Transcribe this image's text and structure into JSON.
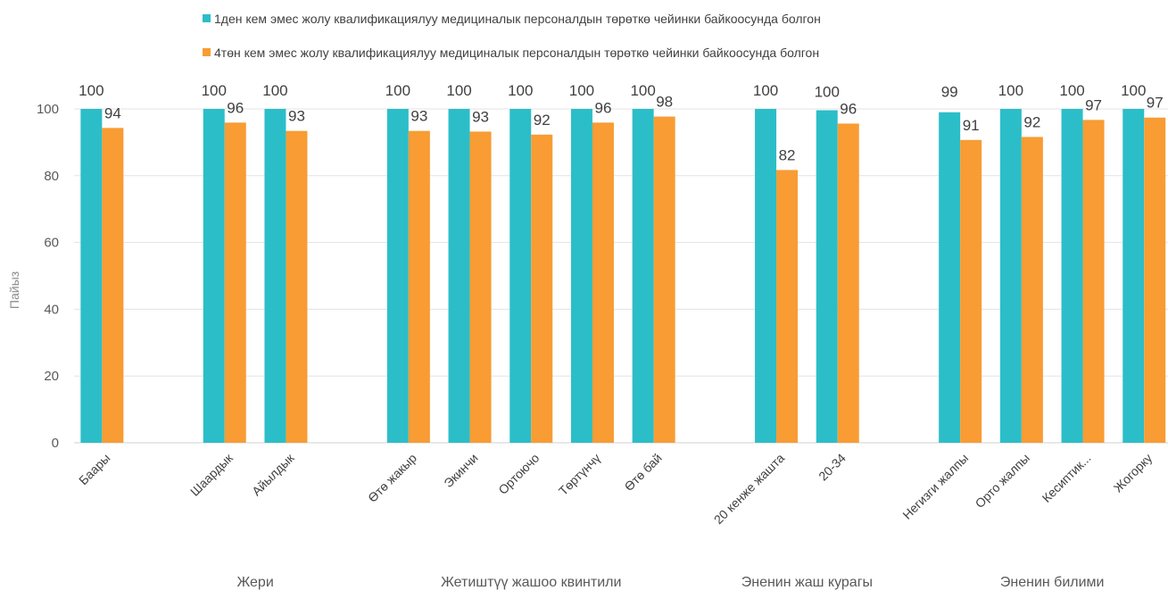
{
  "chart_data": {
    "type": "bar",
    "xlabel": "",
    "ylabel": "Пайыз",
    "ylim": [
      0,
      100
    ],
    "yticks": [
      0,
      20,
      40,
      60,
      80,
      100
    ],
    "grid": true,
    "legend_position": "top",
    "categories": [
      "Баары",
      "Шаардык",
      "Айылдык",
      "Өтө жакыр",
      "Экинчи",
      "Ортоючо",
      "Төртүнчү",
      "Өтө бай",
      "20 кенже жашта",
      "20-34",
      "Негизги жалпы",
      "Орто жалпы",
      "Кесиптик...",
      "Жогорку"
    ],
    "groups": [
      {
        "label": "",
        "categories": [
          "Баары"
        ]
      },
      {
        "label": "Жери",
        "categories": [
          "Шаардык",
          "Айылдык"
        ]
      },
      {
        "label": "Жетиштүү жашоо квинтили",
        "categories": [
          "Өтө жакыр",
          "Экинчи",
          "Ортоючо",
          "Төртүнчү",
          "Өтө бай"
        ]
      },
      {
        "label": "Эненин жаш курагы",
        "categories": [
          "20 кенже жашта",
          "20-34"
        ]
      },
      {
        "label": "Эненин билими",
        "categories": [
          "Негизги жалпы",
          "Орто жалпы",
          "Кесиптик...",
          "Жогорку"
        ]
      }
    ],
    "series": [
      {
        "name": "1ден кем эмес жолу квалификациялуу медициналык персоналдын төрөткө чейинки байкоосунда болгон",
        "color": "#2bbec8",
        "values": [
          100,
          100,
          100,
          100,
          100,
          100,
          100,
          100,
          100,
          99.6,
          99,
          100,
          100,
          100
        ],
        "labels": [
          "100",
          "100",
          "100",
          "100",
          "100",
          "100",
          "100",
          "100",
          "100",
          "100",
          "99",
          "100",
          "100",
          "100"
        ]
      },
      {
        "name": "4төн кем эмес жолу квалификациялуу медициналык персоналдын төрөткө чейинки байкоосунда болгон",
        "color": "#f89c33",
        "values": [
          94.3,
          95.9,
          93.4,
          93.4,
          93.2,
          92.3,
          95.9,
          97.7,
          81.7,
          95.6,
          90.7,
          91.6,
          96.7,
          97.4
        ],
        "labels": [
          "94",
          "96",
          "93",
          "93",
          "93",
          "92",
          "96",
          "98",
          "82",
          "96",
          "91",
          "92",
          "97",
          "97"
        ]
      }
    ]
  }
}
